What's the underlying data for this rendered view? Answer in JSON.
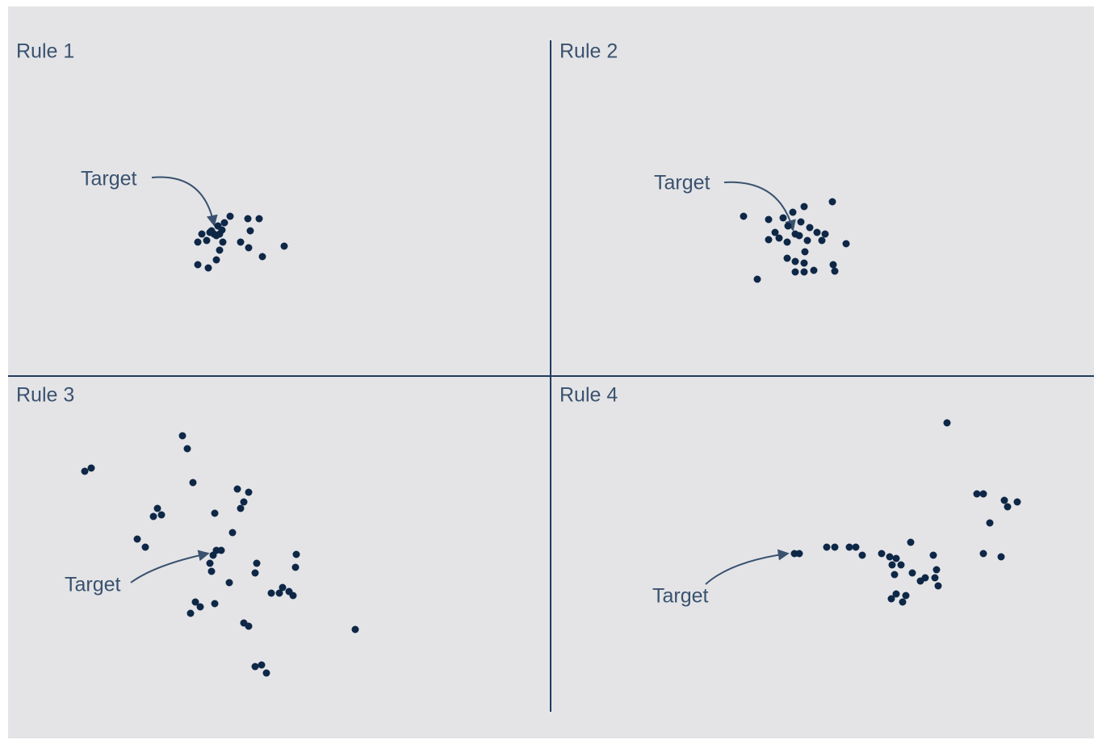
{
  "panels": [
    {
      "title": "Rule 1",
      "target_label": "Target"
    },
    {
      "title": "Rule 2",
      "target_label": "Target"
    },
    {
      "title": "Rule 3",
      "target_label": "Target"
    },
    {
      "title": "Rule 4",
      "target_label": "Target"
    }
  ]
}
